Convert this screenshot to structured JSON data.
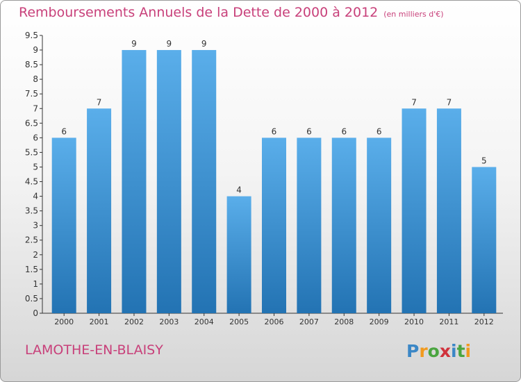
{
  "title": "Remboursements Annuels de la Dette de 2000 à 2012",
  "unit": "(en milliers d'€)",
  "commune": "LAMOTHE-EN-BLAISY",
  "logo": {
    "letters": [
      "P",
      "r",
      "o",
      "x",
      "i",
      "t",
      "i"
    ],
    "colors": [
      "#3b87c6",
      "#f19a1e",
      "#4aa540",
      "#d0323c",
      "#3b87c6",
      "#4aa540",
      "#f19a1e"
    ]
  },
  "colors": {
    "bar_top": "#5aaeea",
    "bar_bottom": "#2373b3",
    "accent": "#c8407a",
    "axis": "#333333",
    "grid": "#cccccc"
  },
  "chart_data": {
    "type": "bar",
    "title": "Remboursements Annuels de la Dette de 2000 à 2012",
    "xlabel": "",
    "ylabel": "",
    "categories": [
      "2000",
      "2001",
      "2002",
      "2003",
      "2004",
      "2005",
      "2006",
      "2007",
      "2008",
      "2009",
      "2010",
      "2011",
      "2012"
    ],
    "values": [
      6,
      7,
      9,
      9,
      9,
      4,
      6,
      6,
      6,
      6,
      7,
      7,
      5
    ],
    "ylim": [
      0,
      9.5
    ],
    "yticks": [
      "0",
      "0.5",
      "1",
      "1.5",
      "2",
      "2.5",
      "3",
      "3.5",
      "4",
      "4.5",
      "5",
      "5.5",
      "6",
      "6.5",
      "7",
      "7.5",
      "8",
      "8.5",
      "9",
      "9.5"
    ],
    "grid": false,
    "legend": "none"
  }
}
